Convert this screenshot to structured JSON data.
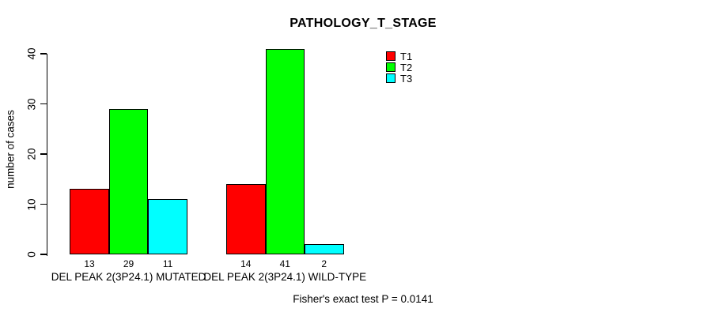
{
  "chart_data": {
    "type": "bar",
    "title": "PATHOLOGY_T_STAGE",
    "ylabel": "number of cases",
    "xlabel": "",
    "ylim": [
      0,
      40
    ],
    "yticks": [
      0,
      10,
      20,
      30,
      40
    ],
    "grid": false,
    "legend_position": "top-right",
    "categories": [
      "DEL PEAK 2(3P24.1) MUTATED",
      "DEL PEAK 2(3P24.1) WILD-TYPE"
    ],
    "series": [
      {
        "name": "T1",
        "color": "#ff0000",
        "values": [
          13,
          14
        ]
      },
      {
        "name": "T2",
        "color": "#00ff00",
        "values": [
          29,
          41
        ]
      },
      {
        "name": "T3",
        "color": "#00ffff",
        "values": [
          11,
          2
        ]
      }
    ],
    "value_labels_under_bars": [
      [
        13,
        29,
        11
      ],
      [
        14,
        41,
        2
      ]
    ],
    "annotation": "Fisher's exact test P = 0.0141",
    "colors": {
      "axis": "#000000",
      "text": "#000000",
      "background": "#ffffff"
    }
  }
}
